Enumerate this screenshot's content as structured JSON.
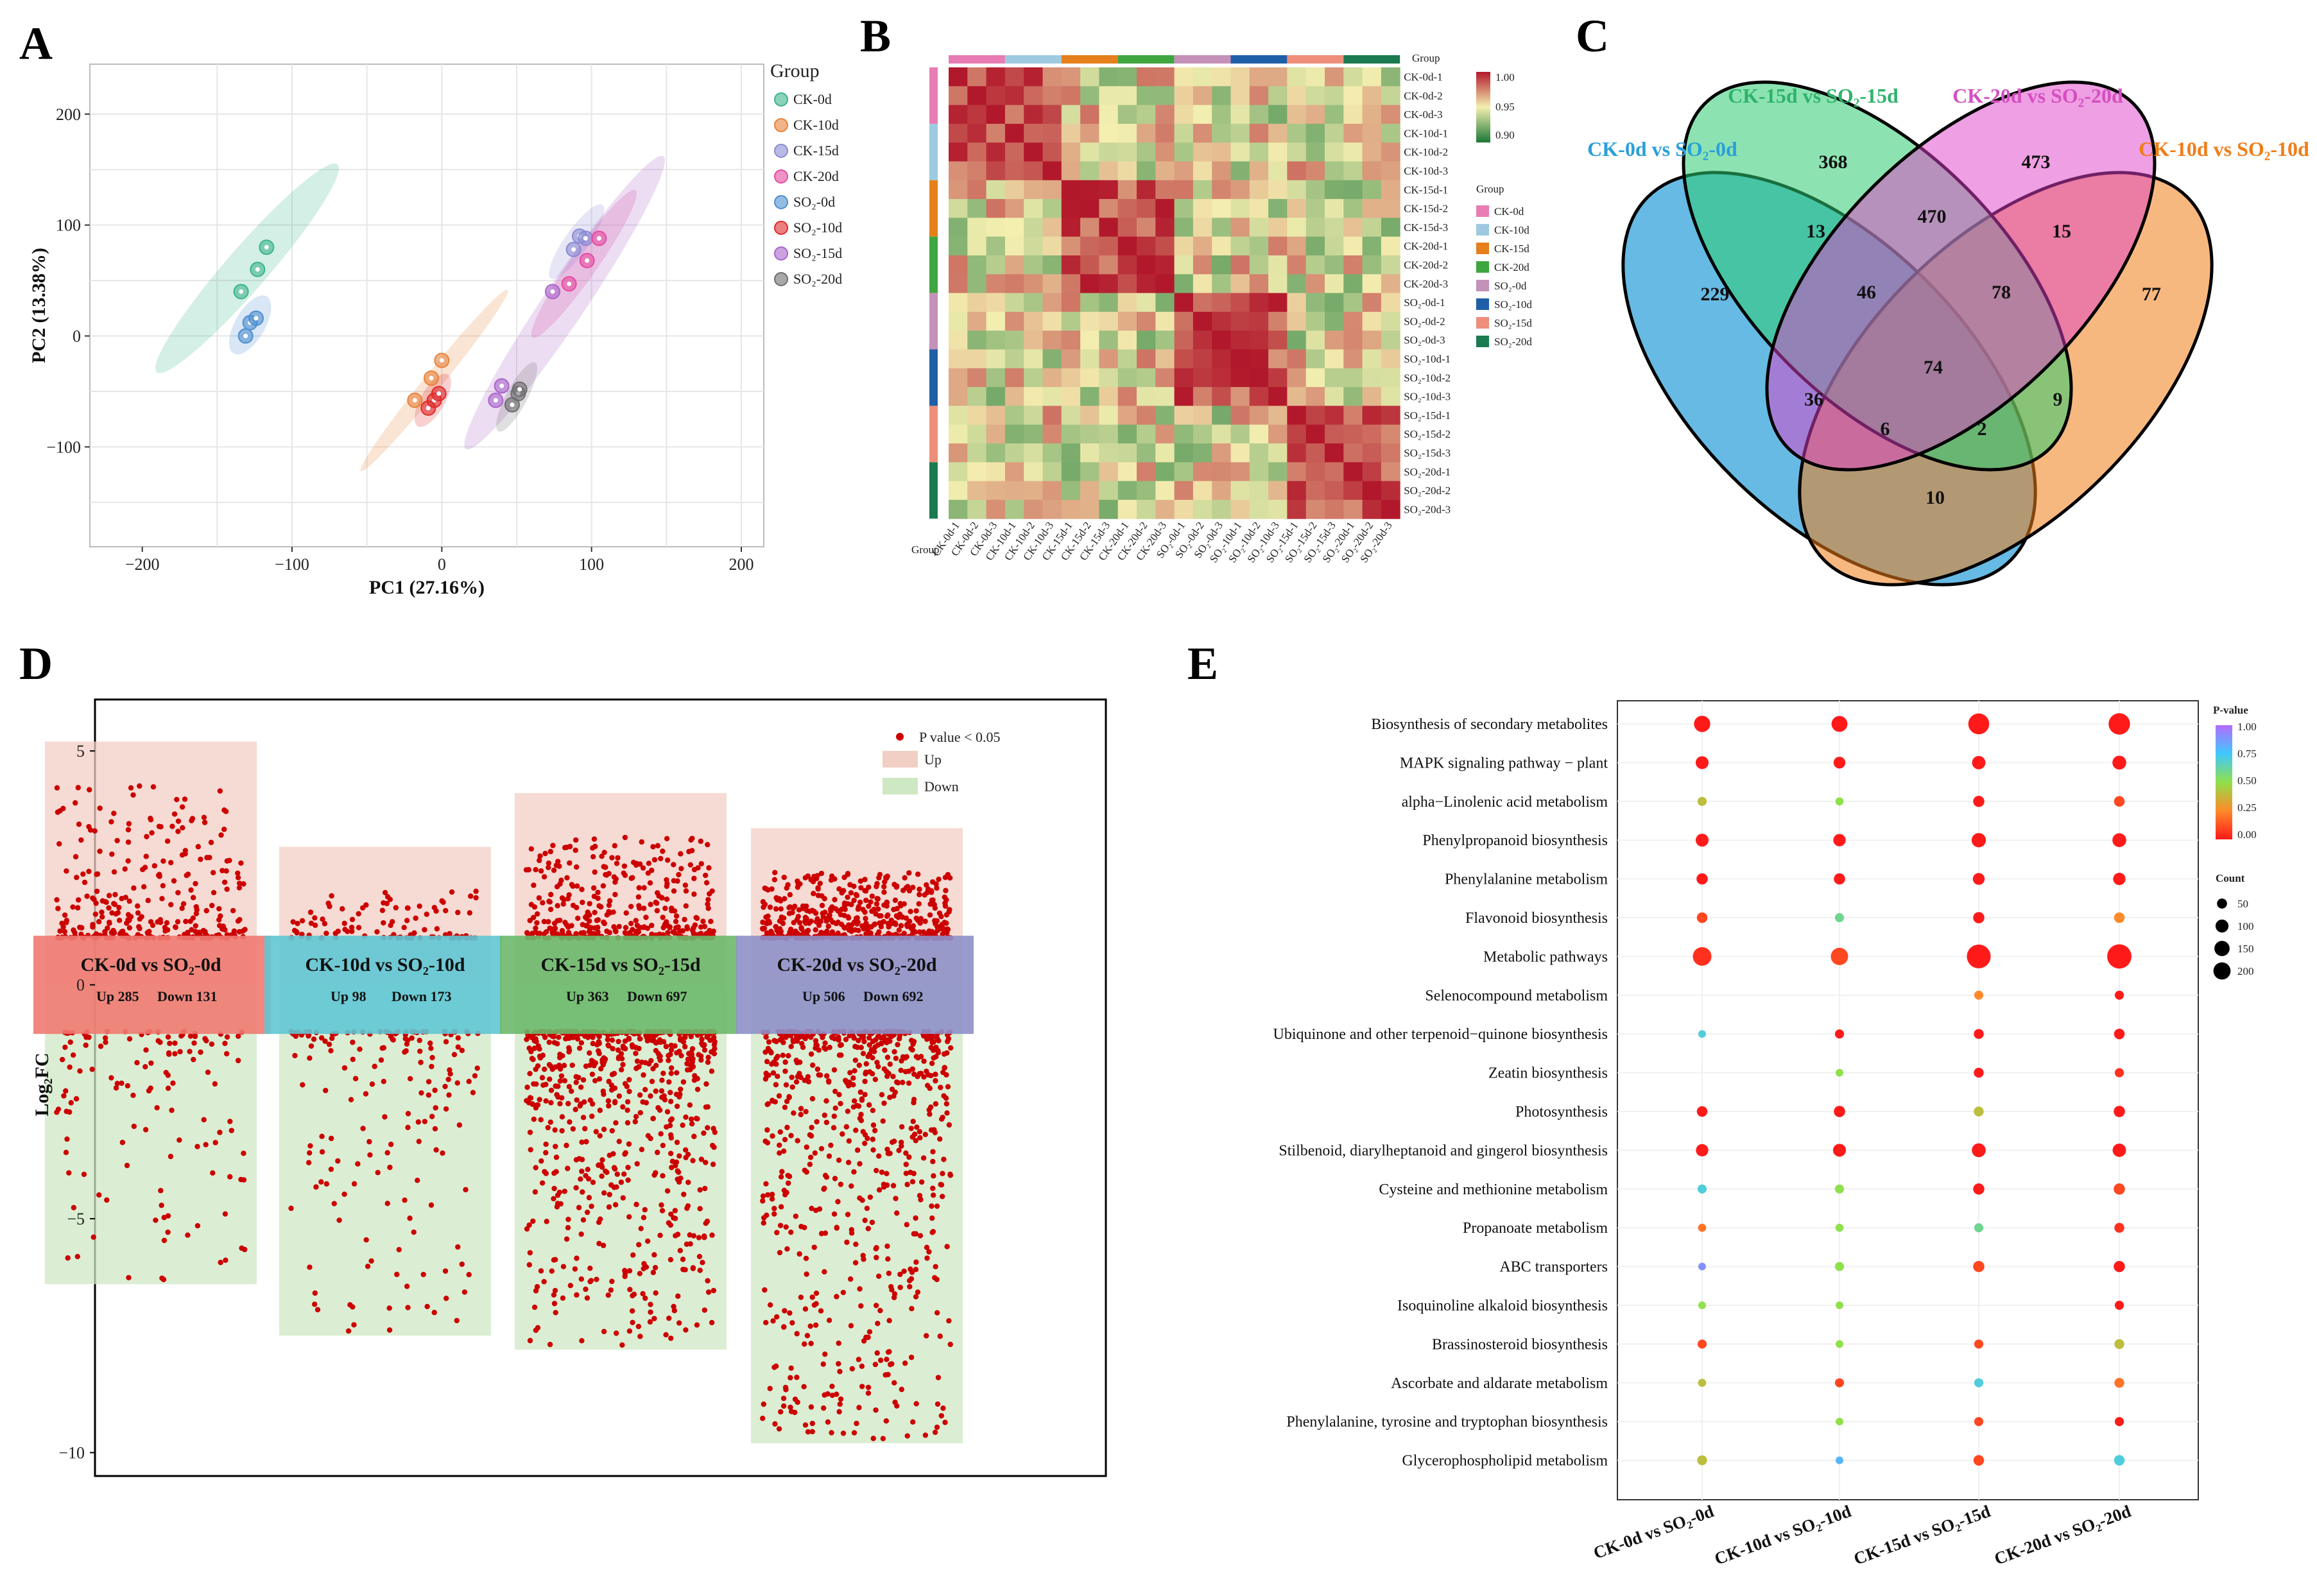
{
  "panels": {
    "A": "A",
    "B": "B",
    "C": "C",
    "D": "D",
    "E": "E"
  },
  "chart_data": [
    {
      "id": "pca",
      "type": "scatter",
      "xlabel": "PC1 (27.16%)",
      "ylabel": "PC2 (13.38%)",
      "xlim": [
        -235,
        215
      ],
      "ylim": [
        -190,
        245
      ],
      "xticks": [
        -200,
        -100,
        0,
        100,
        200
      ],
      "yticks": [
        -100,
        0,
        100,
        200
      ],
      "legend_title": "Group",
      "groups": [
        {
          "name": "CK-0d",
          "color": "#3cb48a",
          "points": [
            [
              -134,
              40
            ],
            [
              -123,
              60
            ],
            [
              -117,
              80
            ]
          ],
          "ellipse": {
            "cx": -130,
            "cy": 61,
            "rx": 92,
            "ry": 14,
            "angle": 49
          }
        },
        {
          "name": "CK-10d",
          "color": "#e8823a",
          "points": [
            [
              -18,
              -58
            ],
            [
              -7,
              -38
            ],
            [
              0,
              -22
            ]
          ],
          "ellipse": {
            "cx": -5,
            "cy": -40,
            "rx": 78,
            "ry": 6,
            "angle": 51
          }
        },
        {
          "name": "CK-15d",
          "color": "#8b8bd4",
          "points": [
            [
              88,
              78
            ],
            [
              92,
              90
            ],
            [
              96,
              88
            ]
          ],
          "ellipse": {
            "cx": 90,
            "cy": 85,
            "rx": 30,
            "ry": 8,
            "angle": 55
          }
        },
        {
          "name": "CK-20d",
          "color": "#e64aa0",
          "points": [
            [
              85,
              47
            ],
            [
              97,
              68
            ],
            [
              105,
              88
            ]
          ],
          "ellipse": {
            "cx": 95,
            "cy": 65,
            "rx": 60,
            "ry": 9,
            "angle": 55
          }
        },
        {
          "name": "SO₂-0d",
          "color": "#4f8fd0",
          "points": [
            [
              -131,
              0
            ],
            [
              -128,
              12
            ],
            [
              -124,
              16
            ]
          ],
          "ellipse": {
            "cx": -128,
            "cy": 10,
            "rx": 22,
            "ry": 10,
            "angle": 60
          }
        },
        {
          "name": "SO₂-10d",
          "color": "#e02a2a",
          "points": [
            [
              -9,
              -65
            ],
            [
              -5,
              -58
            ],
            [
              -2,
              -52
            ]
          ],
          "ellipse": {
            "cx": -6,
            "cy": -58,
            "rx": 20,
            "ry": 8,
            "angle": 60
          }
        },
        {
          "name": "SO₂-15d",
          "color": "#a964c9",
          "points": [
            [
              36,
              -58
            ],
            [
              40,
              -45
            ],
            [
              74,
              40
            ]
          ],
          "ellipse": {
            "cx": 82,
            "cy": 30,
            "rx": 118,
            "ry": 14,
            "angle": 56
          }
        },
        {
          "name": "SO₂-20d",
          "color": "#6e6e6e",
          "points": [
            [
              47,
              -62
            ],
            [
              51,
              -52
            ],
            [
              52,
              -48
            ]
          ],
          "ellipse": {
            "cx": 50,
            "cy": -55,
            "rx": 26,
            "ry": 7,
            "angle": 62
          }
        }
      ]
    },
    {
      "id": "correlation_heatmap",
      "type": "heatmap",
      "samples": [
        "CK-0d-1",
        "CK-0d-2",
        "CK-0d-3",
        "CK-10d-1",
        "CK-10d-2",
        "CK-10d-3",
        "CK-15d-1",
        "CK-15d-2",
        "CK-15d-3",
        "CK-20d-1",
        "CK-20d-2",
        "CK-20d-3",
        "SO₂-0d-1",
        "SO₂-0d-2",
        "SO₂-0d-3",
        "SO₂-10d-1",
        "SO₂-10d-2",
        "SO₂-10d-3",
        "SO₂-15d-1",
        "SO₂-15d-2",
        "SO₂-15d-3",
        "SO₂-20d-1",
        "SO₂-20d-2",
        "SO₂-20d-3"
      ],
      "colorbar": {
        "ticks": [
          "1.00",
          "0.95",
          "0.90"
        ],
        "min": 0.88,
        "max": 1.0
      },
      "group_label": "Group",
      "legend_title": "Group",
      "groups": [
        {
          "name": "CK-0d",
          "color": "#e87cb4"
        },
        {
          "name": "CK-10d",
          "color": "#9ecae1"
        },
        {
          "name": "CK-15d",
          "color": "#e5801c"
        },
        {
          "name": "CK-20d",
          "color": "#3fa63f"
        },
        {
          "name": "SO₂-0d",
          "color": "#c491b8"
        },
        {
          "name": "SO₂-10d",
          "color": "#1f5fa8"
        },
        {
          "name": "SO₂-15d",
          "color": "#ee8e7a"
        },
        {
          "name": "SO₂-20d",
          "color": "#1b7a4f"
        }
      ],
      "clusters": [
        [
          0,
          1,
          2,
          3,
          4,
          5
        ],
        [
          6,
          7,
          8,
          9,
          10,
          11
        ],
        [
          12,
          13,
          14,
          15,
          16,
          17
        ],
        [
          18,
          19,
          20,
          21,
          22,
          23
        ]
      ]
    },
    {
      "id": "venn",
      "type": "venn",
      "sets": [
        {
          "name": "CK-0d vs SO₂-0d",
          "color": "#2b9fd8"
        },
        {
          "name": "CK-15d vs SO₂-15d",
          "color": "#2eb36b"
        },
        {
          "name": "CK-20d vs SO₂-20d",
          "color": "#d44fc0"
        },
        {
          "name": "CK-10d vs SO₂-10d",
          "color": "#f07d18"
        }
      ],
      "regions": [
        {
          "sets": "A",
          "value": 229
        },
        {
          "sets": "B",
          "value": 368
        },
        {
          "sets": "C",
          "value": 473
        },
        {
          "sets": "D",
          "value": 77
        },
        {
          "sets": "AB",
          "value": 13
        },
        {
          "sets": "BC",
          "value": 470
        },
        {
          "sets": "CD",
          "value": 15
        },
        {
          "sets": "ABC",
          "value": 46
        },
        {
          "sets": "BCD",
          "value": 78
        },
        {
          "sets": "ABCD",
          "value": 74
        },
        {
          "sets": "AC",
          "value": 36
        },
        {
          "sets": "ACD",
          "value": 6
        },
        {
          "sets": "ABD",
          "value": 2
        },
        {
          "sets": "BD",
          "value": 9
        },
        {
          "sets": "AD",
          "value": 10
        }
      ]
    },
    {
      "id": "volcano_strip",
      "type": "scatter",
      "ylabel": "Log₂FC",
      "ylim": [
        -10.5,
        6.1
      ],
      "yticks": [
        5,
        0,
        -5,
        -10
      ],
      "legend": {
        "points": "P value < 0.05",
        "up": "Up",
        "down": "Down"
      },
      "comparisons": [
        {
          "label": "CK-0d vs SO₂-0d",
          "up_text": "Up 285",
          "down_text": "Down 131",
          "up": 285,
          "down": 131,
          "ymax": 5.2,
          "ymin": -6.4,
          "color": "#f07a72"
        },
        {
          "label": "CK-10d vs SO₂-10d",
          "up_text": "Up 98",
          "down_text": "Down 173",
          "up": 98,
          "down": 173,
          "ymax": 2.95,
          "ymin": -7.5,
          "color": "#5fc6d4"
        },
        {
          "label": "CK-15d vs SO₂-15d",
          "up_text": "Up 363",
          "down_text": "Down 697",
          "up": 363,
          "down": 697,
          "ymax": 4.1,
          "ymin": -7.8,
          "color": "#6bb86b"
        },
        {
          "label": "CK-20d vs SO₂-20d",
          "up_text": "Up 506",
          "down_text": "Down 692",
          "up": 506,
          "down": 692,
          "ymax": 3.35,
          "ymin": -9.8,
          "color": "#8e90c8"
        }
      ]
    },
    {
      "id": "kegg_bubble",
      "type": "scatter",
      "comparisons": [
        "CK-0d vs SO₂-0d",
        "CK-10d vs SO₂-10d",
        "CK-15d vs SO₂-15d",
        "CK-20d vs SO₂-20d"
      ],
      "pvalue_title": "P-value",
      "pvalue_ticks": [
        "1.00",
        "0.75",
        "0.50",
        "0.25",
        "0.00"
      ],
      "count_title": "Count",
      "count_ticks": [
        50,
        100,
        150,
        200
      ],
      "pathways": [
        {
          "name": "Biosynthesis of secondary metabolites",
          "points": [
            {
              "c": 0,
              "count": 85,
              "p": 0.0
            },
            {
              "c": 1,
              "count": 80,
              "p": 0.0
            },
            {
              "c": 2,
              "count": 160,
              "p": 0.0
            },
            {
              "c": 3,
              "count": 170,
              "p": 0.0
            }
          ]
        },
        {
          "name": "MAPK signaling pathway − plant",
          "points": [
            {
              "c": 0,
              "count": 45,
              "p": 0.0
            },
            {
              "c": 1,
              "count": 35,
              "p": 0.0
            },
            {
              "c": 2,
              "count": 50,
              "p": 0.0
            },
            {
              "c": 3,
              "count": 55,
              "p": 0.0
            }
          ]
        },
        {
          "name": "alpha−Linolenic acid metabolism",
          "points": [
            {
              "c": 0,
              "count": 15,
              "p": 0.4
            },
            {
              "c": 1,
              "count": 10,
              "p": 0.5
            },
            {
              "c": 2,
              "count": 30,
              "p": 0.0
            },
            {
              "c": 3,
              "count": 25,
              "p": 0.1
            }
          ]
        },
        {
          "name": "Phenylpropanoid biosynthesis",
          "points": [
            {
              "c": 0,
              "count": 45,
              "p": 0.0
            },
            {
              "c": 1,
              "count": 40,
              "p": 0.0
            },
            {
              "c": 2,
              "count": 60,
              "p": 0.0
            },
            {
              "c": 3,
              "count": 55,
              "p": 0.0
            }
          ]
        },
        {
          "name": "Phenylalanine metabolism",
          "points": [
            {
              "c": 0,
              "count": 30,
              "p": 0.0
            },
            {
              "c": 1,
              "count": 30,
              "p": 0.0
            },
            {
              "c": 2,
              "count": 35,
              "p": 0.0
            },
            {
              "c": 3,
              "count": 40,
              "p": 0.0
            }
          ]
        },
        {
          "name": "Flavonoid biosynthesis",
          "points": [
            {
              "c": 0,
              "count": 25,
              "p": 0.1
            },
            {
              "c": 1,
              "count": 15,
              "p": 0.6
            },
            {
              "c": 2,
              "count": 30,
              "p": 0.0
            },
            {
              "c": 3,
              "count": 25,
              "p": 0.25
            }
          ]
        },
        {
          "name": "Metabolic pathways",
          "points": [
            {
              "c": 0,
              "count": 120,
              "p": 0.05
            },
            {
              "c": 1,
              "count": 100,
              "p": 0.1
            },
            {
              "c": 2,
              "count": 220,
              "p": 0.0
            },
            {
              "c": 3,
              "count": 230,
              "p": 0.0
            }
          ]
        },
        {
          "name": "Selenocompound metabolism",
          "points": [
            {
              "c": 2,
              "count": 15,
              "p": 0.25
            },
            {
              "c": 3,
              "count": 15,
              "p": 0.0
            }
          ]
        },
        {
          "name": "Ubiquinone and other terpenoid−quinone biosynthesis",
          "points": [
            {
              "c": 0,
              "count": 8,
              "p": 0.7
            },
            {
              "c": 1,
              "count": 15,
              "p": 0.0
            },
            {
              "c": 2,
              "count": 20,
              "p": 0.0
            },
            {
              "c": 3,
              "count": 25,
              "p": 0.0
            }
          ]
        },
        {
          "name": "Zeatin biosynthesis",
          "points": [
            {
              "c": 1,
              "count": 8,
              "p": 0.5
            },
            {
              "c": 2,
              "count": 20,
              "p": 0.0
            },
            {
              "c": 3,
              "count": 15,
              "p": 0.05
            }
          ]
        },
        {
          "name": "Photosynthesis",
          "points": [
            {
              "c": 0,
              "count": 25,
              "p": 0.0
            },
            {
              "c": 1,
              "count": 30,
              "p": 0.0
            },
            {
              "c": 2,
              "count": 20,
              "p": 0.4
            },
            {
              "c": 3,
              "count": 30,
              "p": 0.0
            }
          ]
        },
        {
          "name": "Stilbenoid, diarylheptanoid and gingerol biosynthesis",
          "points": [
            {
              "c": 0,
              "count": 40,
              "p": 0.0
            },
            {
              "c": 1,
              "count": 45,
              "p": 0.0
            },
            {
              "c": 2,
              "count": 55,
              "p": 0.0
            },
            {
              "c": 3,
              "count": 50,
              "p": 0.0
            }
          ]
        },
        {
          "name": "Cysteine and methionine metabolism",
          "points": [
            {
              "c": 0,
              "count": 15,
              "p": 0.7
            },
            {
              "c": 1,
              "count": 15,
              "p": 0.5
            },
            {
              "c": 2,
              "count": 30,
              "p": 0.0
            },
            {
              "c": 3,
              "count": 30,
              "p": 0.1
            }
          ]
        },
        {
          "name": "Propanoate metabolism",
          "points": [
            {
              "c": 0,
              "count": 10,
              "p": 0.2
            },
            {
              "c": 1,
              "count": 10,
              "p": 0.5
            },
            {
              "c": 2,
              "count": 15,
              "p": 0.6
            },
            {
              "c": 3,
              "count": 20,
              "p": 0.05
            }
          ]
        },
        {
          "name": "ABC transporters",
          "points": [
            {
              "c": 0,
              "count": 8,
              "p": 0.9
            },
            {
              "c": 1,
              "count": 15,
              "p": 0.5
            },
            {
              "c": 2,
              "count": 30,
              "p": 0.1
            },
            {
              "c": 3,
              "count": 30,
              "p": 0.0
            }
          ]
        },
        {
          "name": "Isoquinoline alkaloid biosynthesis",
          "points": [
            {
              "c": 0,
              "count": 8,
              "p": 0.5
            },
            {
              "c": 1,
              "count": 8,
              "p": 0.5
            },
            {
              "c": 3,
              "count": 15,
              "p": 0.0
            }
          ]
        },
        {
          "name": "Brassinosteroid biosynthesis",
          "points": [
            {
              "c": 0,
              "count": 15,
              "p": 0.1
            },
            {
              "c": 1,
              "count": 8,
              "p": 0.5
            },
            {
              "c": 2,
              "count": 15,
              "p": 0.1
            },
            {
              "c": 3,
              "count": 20,
              "p": 0.4
            }
          ]
        },
        {
          "name": "Ascorbate and aldarate metabolism",
          "points": [
            {
              "c": 0,
              "count": 10,
              "p": 0.4
            },
            {
              "c": 1,
              "count": 15,
              "p": 0.1
            },
            {
              "c": 2,
              "count": 15,
              "p": 0.7
            },
            {
              "c": 3,
              "count": 20,
              "p": 0.2
            }
          ]
        },
        {
          "name": "Phenylalanine, tyrosine and tryptophan biosynthesis",
          "points": [
            {
              "c": 1,
              "count": 8,
              "p": 0.5
            },
            {
              "c": 2,
              "count": 15,
              "p": 0.1
            },
            {
              "c": 3,
              "count": 15,
              "p": 0.0
            }
          ]
        },
        {
          "name": "Glycerophospholipid metabolism",
          "points": [
            {
              "c": 0,
              "count": 20,
              "p": 0.4
            },
            {
              "c": 1,
              "count": 8,
              "p": 0.8
            },
            {
              "c": 2,
              "count": 25,
              "p": 0.1
            },
            {
              "c": 3,
              "count": 25,
              "p": 0.7
            }
          ]
        }
      ]
    }
  ]
}
